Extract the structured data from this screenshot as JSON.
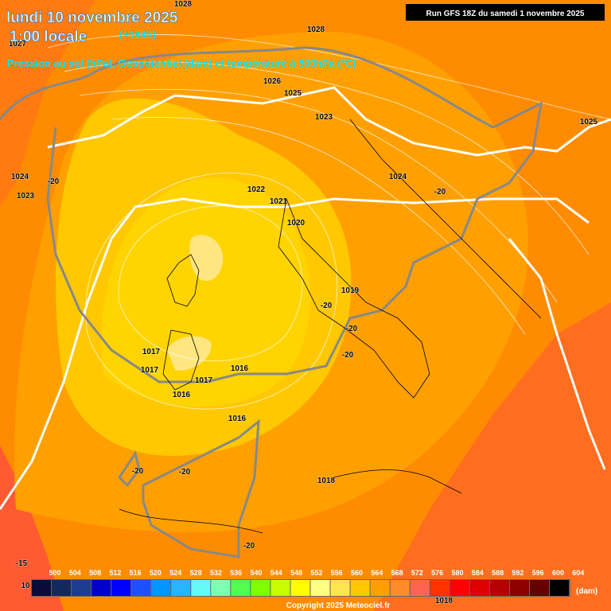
{
  "header": {
    "title": "lundi 10 novembre 2025",
    "time": "1:00 locale",
    "lead": "(+198h)",
    "subtitle": "Pression au sol (hPa), Geopotentiel (dam) et température à 500hPa (°C)",
    "run": "Run GFS 18Z du samedi 1 novembre 2025"
  },
  "contour_labels": [
    "1028",
    "1027",
    "1028",
    "1026",
    "1025",
    "1023",
    "1025",
    "1024",
    "1023",
    "-20",
    "1022",
    "1021",
    "1020",
    "1024",
    "-20",
    "1019",
    "-20",
    "-20",
    "-20",
    "1017",
    "1017",
    "1016",
    "1017",
    "1016",
    "1016",
    "-20",
    "-20",
    "1018",
    "-20",
    "-15",
    "10",
    "1018"
  ],
  "colorbar": {
    "labels": [
      "500",
      "504",
      "508",
      "512",
      "516",
      "520",
      "524",
      "528",
      "532",
      "536",
      "540",
      "544",
      "548",
      "552",
      "556",
      "560",
      "564",
      "568",
      "572",
      "576",
      "580",
      "584",
      "588",
      "592",
      "596",
      "600",
      "604"
    ],
    "colors": [
      "#0a0a3c",
      "#14285a",
      "#1e3c8c",
      "#0000c8",
      "#0000ff",
      "#1e50ff",
      "#0096ff",
      "#28b4ff",
      "#64fafa",
      "#80ffb4",
      "#50ff50",
      "#80ff00",
      "#c8ff00",
      "#ffff00",
      "#ffff80",
      "#ffe650",
      "#ffc800",
      "#ffa000",
      "#ff8c28",
      "#ff6450",
      "#ff3200",
      "#ff0000",
      "#dc0000",
      "#b40000",
      "#8c0000",
      "#640000",
      "#000000"
    ],
    "unit": "(dam)"
  },
  "copyright": "Copyright 2025 Meteociel.fr"
}
